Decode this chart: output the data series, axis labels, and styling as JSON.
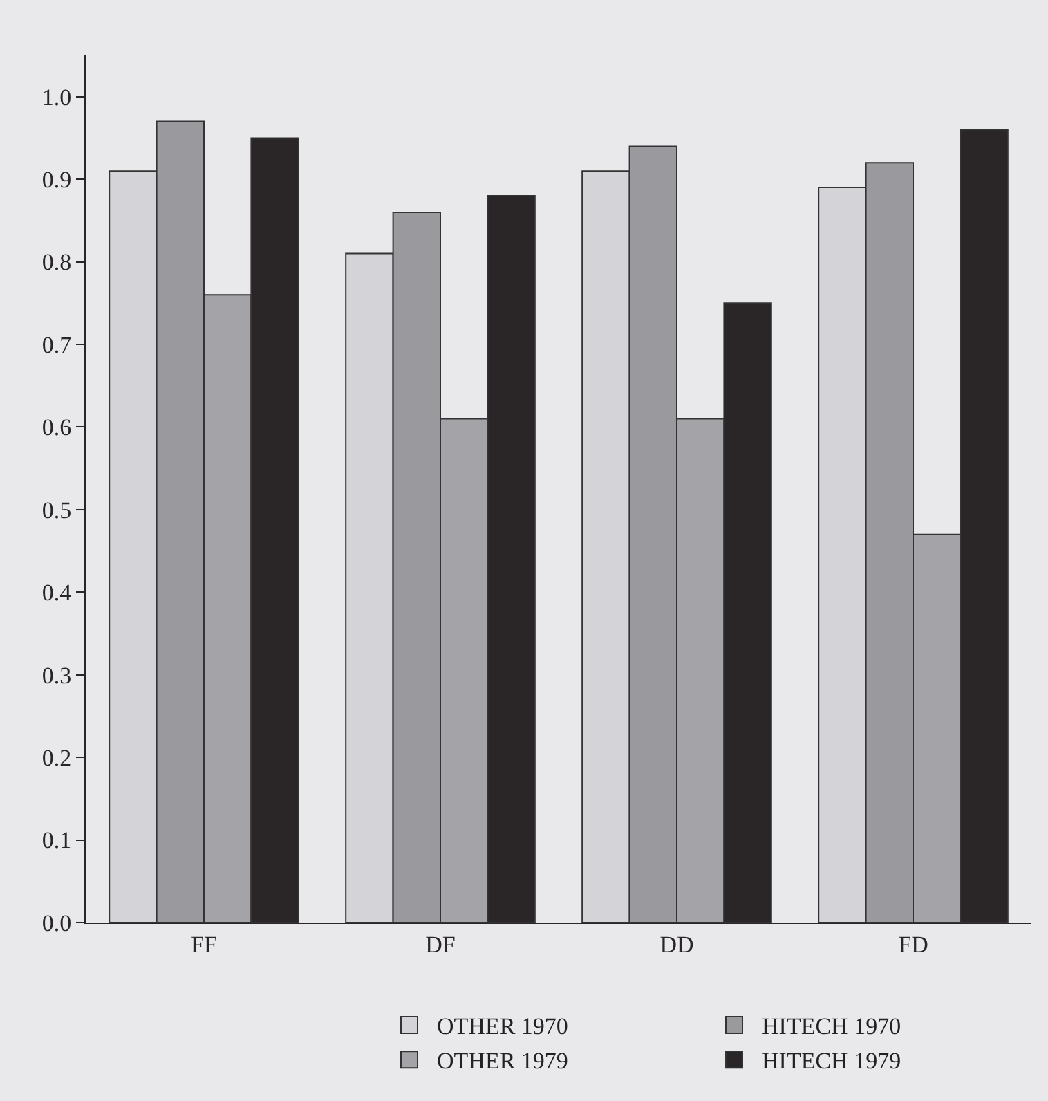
{
  "chart_data": {
    "type": "bar",
    "categories": [
      "FF",
      "DF",
      "DD",
      "FD"
    ],
    "series": [
      {
        "name": "OTHER 1970",
        "color": "#d4d4d8",
        "values": [
          0.91,
          0.81,
          0.91,
          0.89
        ]
      },
      {
        "name": "HITECH 1970",
        "color": "#9a9a9e",
        "values": [
          0.97,
          0.86,
          0.94,
          0.92
        ]
      },
      {
        "name": "OTHER 1979",
        "color": "#a4a4a8",
        "values": [
          0.76,
          0.61,
          0.61,
          0.47
        ]
      },
      {
        "name": "HITECH 1979",
        "color": "#2a2628",
        "values": [
          0.95,
          0.88,
          0.75,
          0.96
        ]
      }
    ],
    "ylim": [
      0,
      1.05
    ],
    "yticks": [
      "0.0",
      0.1,
      0.2,
      0.3,
      0.4,
      0.5,
      0.6,
      0.7,
      0.8,
      0.9,
      "1.0"
    ],
    "grid": false,
    "legend": "bottom right"
  }
}
